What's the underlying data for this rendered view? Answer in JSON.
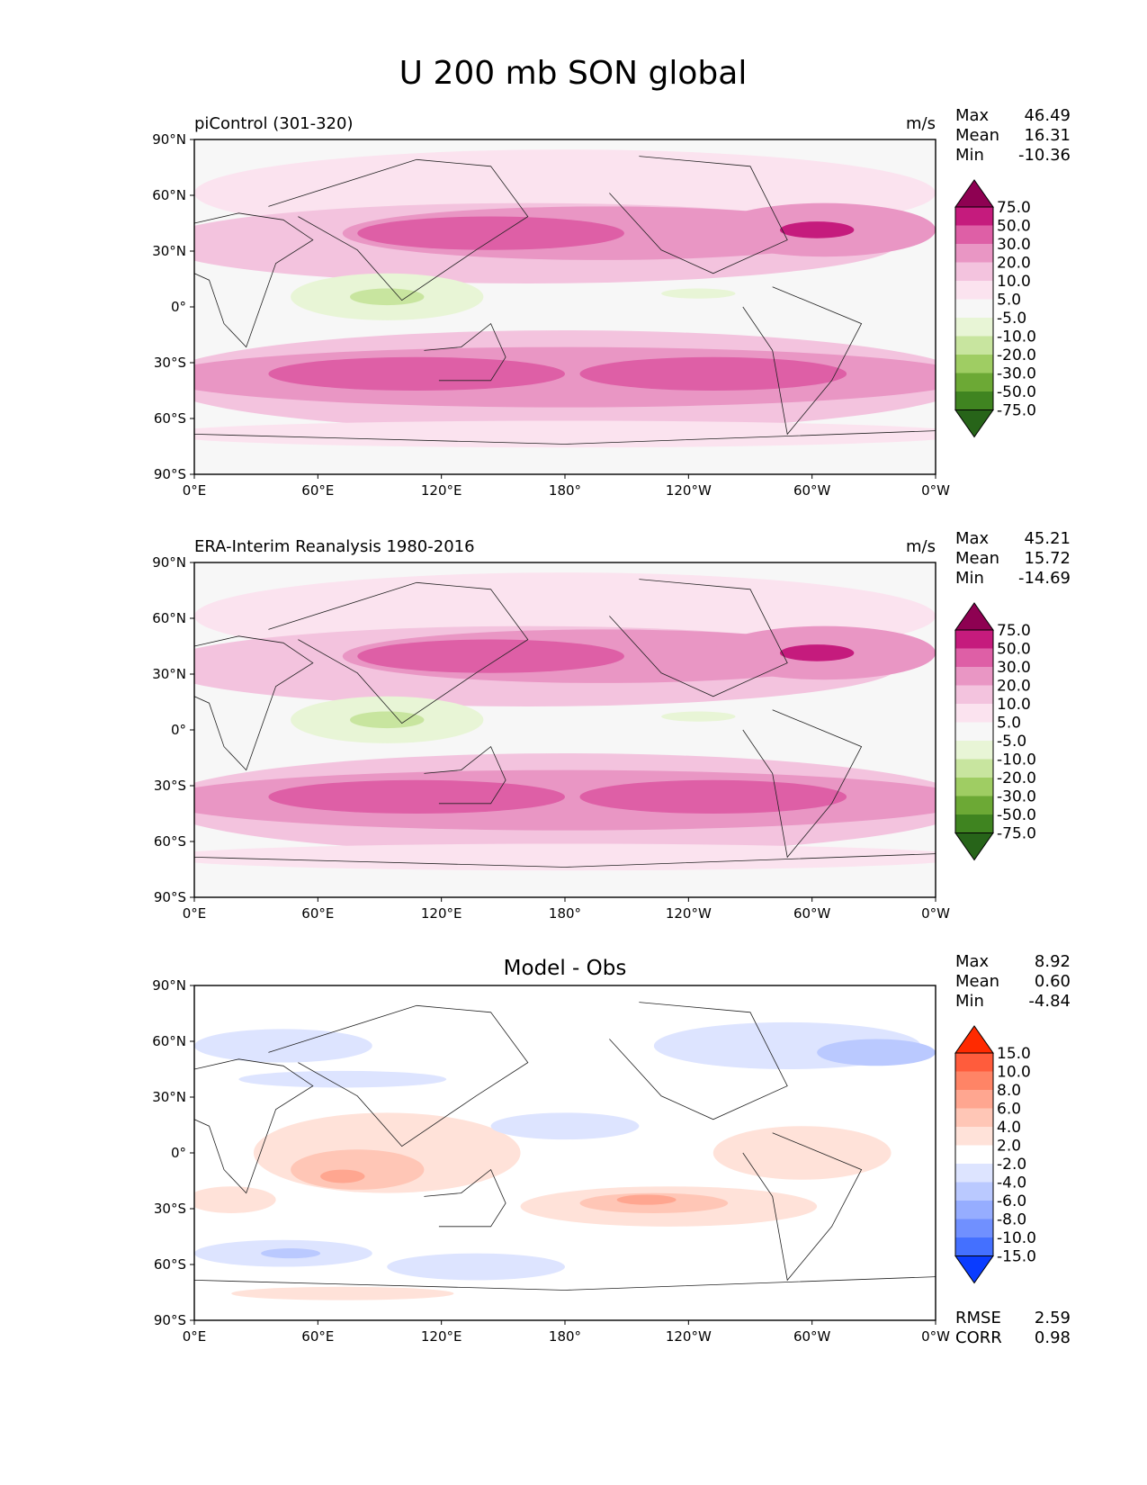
{
  "figure": {
    "title": "U 200 mb SON global"
  },
  "axes": {
    "lat_ticks": [
      "90°N",
      "60°N",
      "30°N",
      "0°",
      "30°S",
      "60°S",
      "90°S"
    ],
    "lon_ticks": [
      "0°E",
      "60°E",
      "120°E",
      "180°",
      "120°W",
      "60°W",
      "0°W"
    ]
  },
  "chart_data": [
    {
      "type": "heatmap",
      "title": "piControl (301-320)",
      "units": "m/s",
      "stats": {
        "max": "46.49",
        "mean": "16.31",
        "min": "-10.36"
      },
      "stat_labels": [
        "Max",
        "Mean",
        "Min"
      ],
      "colorbar_levels": [
        "75.0",
        "50.0",
        "30.0",
        "20.0",
        "10.0",
        "5.0",
        "-5.0",
        "-10.0",
        "-20.0",
        "-30.0",
        "-50.0",
        "-75.0"
      ],
      "colorbar_colors": [
        "#8e0152",
        "#c51b7d",
        "#de5fa6",
        "#e996c4",
        "#f3c3de",
        "#fbe3ef",
        "#f7f7f7",
        "#e8f5d6",
        "#c8e59f",
        "#9fcd63",
        "#6ca935",
        "#3f8420",
        "#276419"
      ],
      "xlim": [
        0,
        360
      ],
      "ylim": [
        -90,
        90
      ]
    },
    {
      "type": "heatmap",
      "title": "ERA-Interim Reanalysis 1980-2016",
      "units": "m/s",
      "stats": {
        "max": "45.21",
        "mean": "15.72",
        "min": "-14.69"
      },
      "stat_labels": [
        "Max",
        "Mean",
        "Min"
      ],
      "colorbar_levels": [
        "75.0",
        "50.0",
        "30.0",
        "20.0",
        "10.0",
        "5.0",
        "-5.0",
        "-10.0",
        "-20.0",
        "-30.0",
        "-50.0",
        "-75.0"
      ],
      "colorbar_colors": [
        "#8e0152",
        "#c51b7d",
        "#de5fa6",
        "#e996c4",
        "#f3c3de",
        "#fbe3ef",
        "#f7f7f7",
        "#e8f5d6",
        "#c8e59f",
        "#9fcd63",
        "#6ca935",
        "#3f8420",
        "#276419"
      ],
      "xlim": [
        0,
        360
      ],
      "ylim": [
        -90,
        90
      ]
    },
    {
      "type": "heatmap",
      "title": "Model - Obs",
      "units": "",
      "stats": {
        "max": "8.92",
        "mean": "0.60",
        "min": "-4.84"
      },
      "stat_labels": [
        "Max",
        "Mean",
        "Min"
      ],
      "extra_stats": [
        {
          "label": "RMSE",
          "value": "2.59"
        },
        {
          "label": "CORR",
          "value": "0.98"
        }
      ],
      "colorbar_levels": [
        "15.0",
        "10.0",
        "8.0",
        "6.0",
        "4.0",
        "2.0",
        "-2.0",
        "-4.0",
        "-6.0",
        "-8.0",
        "-10.0",
        "-15.0"
      ],
      "colorbar_colors": [
        "#ff2a00",
        "#ff5c3c",
        "#ff8466",
        "#ffa690",
        "#ffc6b6",
        "#ffe2d9",
        "#ffffff",
        "#dde4ff",
        "#bac9ff",
        "#96adff",
        "#7090ff",
        "#4470ff",
        "#0a3cff"
      ],
      "xlim": [
        0,
        360
      ],
      "ylim": [
        -90,
        90
      ]
    }
  ]
}
